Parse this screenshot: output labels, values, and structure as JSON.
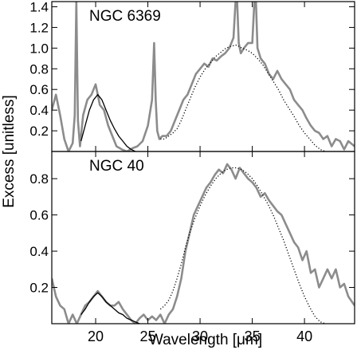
{
  "chart_data": {
    "type": "line",
    "shared_x_axis": {
      "xlabel": "Wavelength [μm]",
      "xlim": [
        15.8,
        44.8
      ],
      "ticks": [
        20,
        25,
        30,
        35,
        40
      ],
      "tick_labels": [
        "20",
        "25",
        "30",
        "35",
        "40"
      ]
    },
    "ylabel": "Excess [unitless]",
    "panels": [
      {
        "title": "NGC 6369",
        "ylim": [
          0.0,
          1.45
        ],
        "yticks": [
          0.2,
          0.4,
          0.6,
          0.8,
          1.0,
          1.2,
          1.4
        ],
        "ytick_labels": [
          "0.2",
          "0.4",
          "0.6",
          "0.8",
          "1.0",
          "1.2",
          "1.4"
        ],
        "series": [
          {
            "style": "gray-solid",
            "color": "#8c8c8c",
            "x": [
              15.8,
              16.2,
              16.6,
              17.0,
              17.4,
              17.8,
              18.0,
              18.15,
              18.3,
              18.5,
              18.8,
              19.2,
              19.6,
              20.0,
              20.4,
              20.8,
              21.2,
              21.6,
              22.0,
              22.5,
              23.0,
              23.5,
              24.0,
              24.5,
              25.0,
              25.4,
              25.6,
              25.75,
              25.9,
              26.1,
              26.4,
              26.8,
              27.2,
              27.6,
              28.0,
              28.4,
              28.8,
              29.2,
              29.6,
              30.0,
              30.4,
              30.8,
              31.2,
              31.6,
              32.0,
              32.4,
              32.8,
              33.2,
              33.4,
              33.55,
              33.7,
              33.9,
              34.2,
              34.6,
              35.0,
              35.2,
              35.35,
              35.5,
              35.8,
              36.2,
              36.6,
              37.0,
              37.4,
              37.8,
              38.2,
              38.6,
              39.0,
              39.4,
              39.8,
              40.2,
              40.6,
              41.0,
              41.4,
              41.8,
              42.2,
              42.6,
              43.0,
              43.4,
              43.8,
              44.2,
              44.8
            ],
            "y": [
              0.4,
              0.55,
              0.35,
              0.12,
              0.0,
              0.08,
              0.35,
              1.45,
              0.3,
              0.05,
              0.35,
              0.5,
              0.55,
              0.65,
              0.45,
              0.4,
              0.25,
              0.15,
              0.05,
              0.02,
              0.0,
              0.03,
              0.05,
              0.1,
              0.25,
              0.5,
              1.05,
              0.5,
              0.2,
              0.12,
              0.15,
              0.15,
              0.2,
              0.3,
              0.4,
              0.5,
              0.55,
              0.65,
              0.75,
              0.8,
              0.85,
              0.82,
              0.9,
              0.88,
              0.92,
              0.95,
              1.0,
              1.1,
              1.45,
              1.45,
              1.05,
              0.95,
              1.0,
              1.05,
              1.05,
              1.45,
              1.45,
              1.0,
              0.9,
              0.85,
              0.75,
              0.7,
              0.78,
              0.7,
              0.65,
              0.6,
              0.5,
              0.45,
              0.4,
              0.32,
              0.25,
              0.2,
              0.18,
              0.12,
              0.15,
              0.05,
              0.12,
              0.1,
              0.02,
              0.1,
              0.05
            ]
          },
          {
            "style": "black-solid",
            "color": "#000000",
            "x": [
              18.6,
              19.0,
              19.4,
              19.8,
              20.2,
              20.6,
              21.0,
              21.4,
              21.8,
              22.2,
              22.6,
              23.0,
              23.4,
              23.8
            ],
            "y": [
              0.1,
              0.25,
              0.4,
              0.5,
              0.55,
              0.5,
              0.4,
              0.3,
              0.22,
              0.15,
              0.1,
              0.05,
              0.02,
              0.0
            ]
          },
          {
            "style": "black-dotted",
            "color": "#000000",
            "x": [
              26.2,
              26.6,
              27.0,
              27.4,
              27.8,
              28.2,
              28.6,
              29.0,
              29.5,
              30.0,
              30.5,
              31.0,
              31.5,
              32.0,
              32.5,
              33.0,
              33.5,
              34.0,
              34.5,
              35.0,
              35.5,
              36.0,
              36.5,
              37.0,
              37.5,
              38.0,
              38.5,
              39.0,
              39.5,
              40.0,
              40.5,
              41.0,
              41.5,
              42.0
            ],
            "y": [
              0.12,
              0.12,
              0.15,
              0.18,
              0.22,
              0.3,
              0.4,
              0.5,
              0.62,
              0.72,
              0.8,
              0.86,
              0.92,
              0.96,
              1.0,
              1.02,
              1.03,
              1.0,
              0.98,
              0.95,
              0.9,
              0.84,
              0.76,
              0.68,
              0.6,
              0.5,
              0.42,
              0.34,
              0.25,
              0.18,
              0.12,
              0.06,
              0.02,
              0.0
            ]
          }
        ]
      },
      {
        "title": "NGC 40",
        "ylim": [
          0.0,
          0.95
        ],
        "yticks": [
          0.2,
          0.4,
          0.6,
          0.8
        ],
        "ytick_labels": [
          "0.2",
          "0.4",
          "0.6",
          "0.8"
        ],
        "series": [
          {
            "style": "gray-solid",
            "color": "#8c8c8c",
            "x": [
              15.8,
              16.2,
              16.6,
              17.0,
              17.4,
              17.8,
              18.2,
              18.6,
              19.0,
              19.4,
              19.8,
              20.2,
              20.6,
              21.0,
              21.4,
              21.8,
              22.2,
              22.6,
              23.0,
              23.4,
              23.8,
              24.2,
              24.6,
              25.0,
              25.4,
              25.8,
              26.2,
              26.6,
              27.0,
              27.4,
              27.8,
              28.2,
              28.6,
              29.0,
              29.4,
              29.8,
              30.2,
              30.6,
              31.0,
              31.4,
              31.8,
              32.2,
              32.6,
              33.0,
              33.4,
              33.8,
              34.2,
              34.6,
              35.0,
              35.4,
              35.8,
              36.2,
              36.6,
              37.0,
              37.4,
              37.8,
              38.2,
              38.6,
              39.0,
              39.4,
              39.8,
              40.2,
              40.6,
              41.0,
              41.4,
              41.8,
              42.2,
              42.6,
              43.0,
              43.4,
              43.8,
              44.2,
              44.8
            ],
            "y": [
              0.25,
              0.15,
              0.1,
              0.08,
              0.0,
              0.05,
              0.0,
              0.05,
              0.1,
              0.12,
              0.15,
              0.18,
              0.15,
              0.12,
              0.1,
              0.1,
              0.12,
              0.08,
              0.05,
              0.02,
              0.0,
              0.03,
              0.05,
              0.02,
              0.04,
              0.02,
              0.05,
              0.0,
              0.05,
              0.08,
              0.15,
              0.25,
              0.4,
              0.5,
              0.6,
              0.65,
              0.7,
              0.75,
              0.78,
              0.82,
              0.85,
              0.83,
              0.88,
              0.85,
              0.8,
              0.86,
              0.83,
              0.8,
              0.78,
              0.75,
              0.7,
              0.72,
              0.68,
              0.65,
              0.62,
              0.6,
              0.55,
              0.5,
              0.45,
              0.42,
              0.35,
              0.4,
              0.28,
              0.3,
              0.2,
              0.25,
              0.3,
              0.25,
              0.3,
              0.2,
              0.22,
              0.15,
              0.1
            ]
          },
          {
            "style": "black-solid",
            "color": "#000000",
            "x": [
              18.6,
              19.0,
              19.4,
              19.8,
              20.2,
              20.6,
              21.0,
              21.4,
              21.8,
              22.2,
              22.6,
              23.0,
              23.4,
              23.8,
              24.2
            ],
            "y": [
              0.05,
              0.08,
              0.12,
              0.15,
              0.17,
              0.15,
              0.12,
              0.1,
              0.08,
              0.06,
              0.05,
              0.03,
              0.02,
              0.01,
              0.0
            ]
          },
          {
            "style": "black-dotted",
            "color": "#000000",
            "x": [
              26.2,
              26.6,
              27.0,
              27.4,
              27.8,
              28.2,
              28.6,
              29.0,
              29.5,
              30.0,
              30.5,
              31.0,
              31.5,
              32.0,
              32.5,
              33.0,
              33.5,
              34.0,
              34.5,
              35.0,
              35.5,
              36.0,
              36.5,
              37.0,
              37.5,
              38.0,
              38.5,
              39.0,
              39.5,
              40.0,
              40.5,
              41.0,
              41.5,
              42.0
            ],
            "y": [
              0.08,
              0.1,
              0.13,
              0.18,
              0.25,
              0.33,
              0.42,
              0.5,
              0.58,
              0.65,
              0.71,
              0.76,
              0.8,
              0.83,
              0.85,
              0.86,
              0.86,
              0.85,
              0.83,
              0.8,
              0.76,
              0.71,
              0.66,
              0.6,
              0.53,
              0.46,
              0.38,
              0.3,
              0.22,
              0.15,
              0.09,
              0.04,
              0.01,
              0.0
            ]
          }
        ]
      }
    ]
  }
}
